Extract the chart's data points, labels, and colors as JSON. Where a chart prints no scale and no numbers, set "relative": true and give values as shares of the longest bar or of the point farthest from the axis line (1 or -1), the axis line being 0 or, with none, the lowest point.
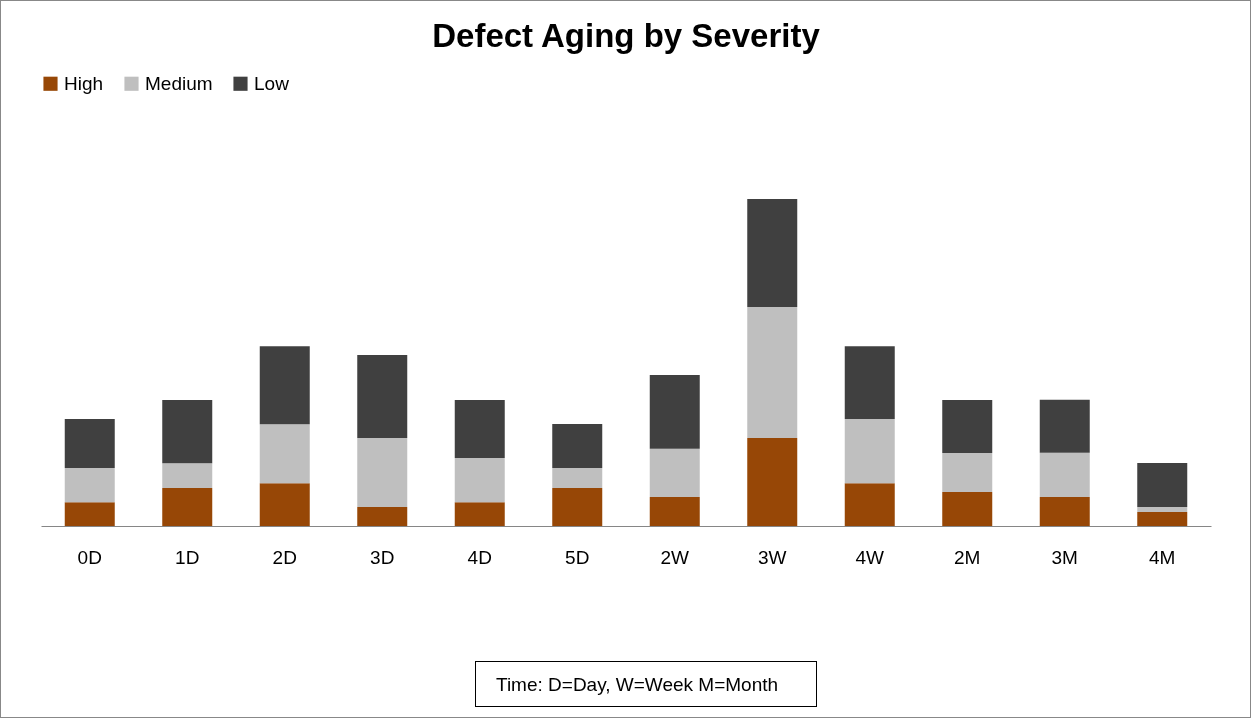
{
  "chart_data": {
    "type": "bar",
    "title": "Defect Aging by Severity",
    "relative": true,
    "stacked": true,
    "legend": "top",
    "categories": [
      "0D",
      "1D",
      "2D",
      "3D",
      "4D",
      "5D",
      "2W",
      "3W",
      "4W",
      "2M",
      "3M",
      "4M"
    ],
    "series": [
      {
        "name": "High",
        "color": "#974706",
        "values": [
          0.073,
          0.116,
          0.131,
          0.058,
          0.073,
          0.116,
          0.089,
          0.269,
          0.131,
          0.104,
          0.089,
          0.043
        ]
      },
      {
        "name": "Medium",
        "color": "#bfbfbf",
        "values": [
          0.104,
          0.076,
          0.18,
          0.211,
          0.135,
          0.061,
          0.147,
          0.401,
          0.196,
          0.119,
          0.135,
          0.015
        ]
      },
      {
        "name": "Low",
        "color": "#404040",
        "values": [
          0.15,
          0.193,
          0.239,
          0.254,
          0.177,
          0.135,
          0.226,
          0.33,
          0.223,
          0.162,
          0.162,
          0.135
        ]
      }
    ],
    "annotations": [
      "Time: D=Day, W=Week M=Month"
    ]
  }
}
